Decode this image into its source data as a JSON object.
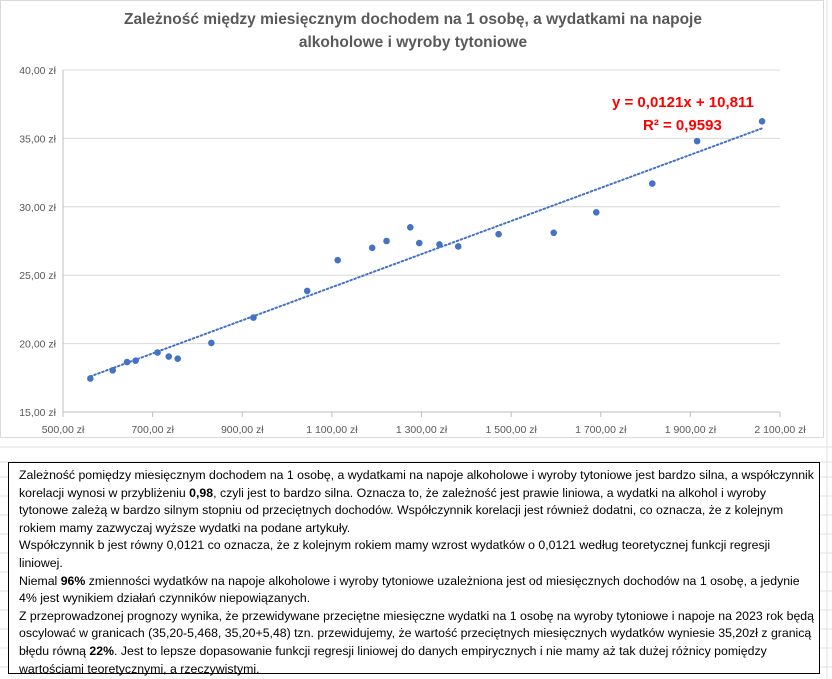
{
  "chart_data": {
    "type": "scatter",
    "title_lines": [
      "Zależność między miesięcznym dochodem na 1 osobę, a wydatkami na napoje",
      "alkoholowe i wyroby tytoniowe"
    ],
    "xlabel": "",
    "ylabel": "",
    "xlim": [
      500,
      2100
    ],
    "ylim": [
      15,
      40
    ],
    "x_ticks": [
      500,
      700,
      900,
      1100,
      1300,
      1500,
      1700,
      1900,
      2100
    ],
    "y_ticks": [
      15,
      20,
      25,
      30,
      35,
      40
    ],
    "x_tick_labels": [
      "500,00 zł",
      "700,00 zł",
      "900,00 zł",
      "1 100,00 zł",
      "1 300,00 zł",
      "1 500,00 zł",
      "1 700,00 zł",
      "1 900,00 zł",
      "2 100,00 zł"
    ],
    "y_tick_labels": [
      "15,00 zł",
      "20,00 zł",
      "25,00 zł",
      "30,00 zł",
      "35,00 zł",
      "40,00 zł"
    ],
    "grid": "horizontal",
    "marker_color": "#4472c4",
    "trendline_color": "#4472c4",
    "series": [
      {
        "points": [
          {
            "x": 561,
            "y": 17.45
          },
          {
            "x": 611,
            "y": 18.05
          },
          {
            "x": 643,
            "y": 18.65
          },
          {
            "x": 662,
            "y": 18.75
          },
          {
            "x": 711,
            "y": 19.35
          },
          {
            "x": 736,
            "y": 19.05
          },
          {
            "x": 756,
            "y": 18.9
          },
          {
            "x": 831,
            "y": 20.05
          },
          {
            "x": 925,
            "y": 21.9
          },
          {
            "x": 1045,
            "y": 23.85
          },
          {
            "x": 1113,
            "y": 26.1
          },
          {
            "x": 1190,
            "y": 27.0
          },
          {
            "x": 1222,
            "y": 27.5
          },
          {
            "x": 1275,
            "y": 28.5
          },
          {
            "x": 1295,
            "y": 27.35
          },
          {
            "x": 1340,
            "y": 27.25
          },
          {
            "x": 1382,
            "y": 27.1
          },
          {
            "x": 1472,
            "y": 28.0
          },
          {
            "x": 1595,
            "y": 28.1
          },
          {
            "x": 1690,
            "y": 29.6
          },
          {
            "x": 1815,
            "y": 31.7
          },
          {
            "x": 1915,
            "y": 34.8
          },
          {
            "x": 2060,
            "y": 36.25
          }
        ]
      }
    ],
    "trendline": {
      "type": "linear",
      "slope": 0.0121,
      "intercept": 10.811,
      "x_range": [
        561,
        2060
      ],
      "equation_label": "y = 0,0121x + 10,811",
      "r2_label": "R² = 0,9593",
      "label_color": "#ff0000"
    }
  },
  "text_box": {
    "paragraphs": [
      [
        {
          "t": "Zależność pomiędzy miesięcznym dochodem na 1 osobę, a wydatkami na napoje alkoholowe i wyroby tytoniowe jest bardzo silna, a współczynnik korelacji wynosi w przybliżeniu "
        },
        {
          "t": "0,98",
          "b": true
        },
        {
          "t": ", czyli jest to bardzo silna. Oznacza to, że zależność jest prawie liniowa, a wydatki na alkohol i wyroby tytonowe zależą w bardzo silnym stopniu od przeciętnych dochodów. Współczynnik korelacji jest również dodatni, co oznacza, że z kolejnym rokiem mamy zazwyczaj wyższe wydatki na podane artykuły."
        }
      ],
      [
        {
          "t": "Współczynnik b jest równy 0,0121 co oznacza, że z kolejnym rokiem mamy wzrost wydatków o 0,0121 według teoretycznej funkcji regresji liniowej."
        }
      ],
      [
        {
          "t": "Niemal "
        },
        {
          "t": "96%",
          "b": true
        },
        {
          "t": " zmienności wydatków na napoje alkoholowe i wyroby tytoniowe uzależniona jest od miesięcznych dochodów na 1 osobę, a jedynie 4% jest wynikiem działań czynników niepowiązanych."
        }
      ],
      [
        {
          "t": "Z przeprowadzonej prognozy wynika, że przewidywane przeciętne miesięczne wydatki na 1 osobę na wyroby tytoniowe i napoje na 2023 rok będą oscylować w granicach (35,20-5,468, 35,20+5,48) tzn. przewidujemy, że wartość przeciętnych miesięcznych wydatków wyniesie 35,20zł z granicą błędu równą "
        },
        {
          "t": "22%",
          "b": true
        },
        {
          "t": ". Jest to lepsze dopasowanie funkcji regresji liniowej do danych empirycznych i nie mamy aż tak dużej różnicy pomiędzy wartościami teoretycznymi, a rzeczywistymi."
        }
      ]
    ]
  }
}
